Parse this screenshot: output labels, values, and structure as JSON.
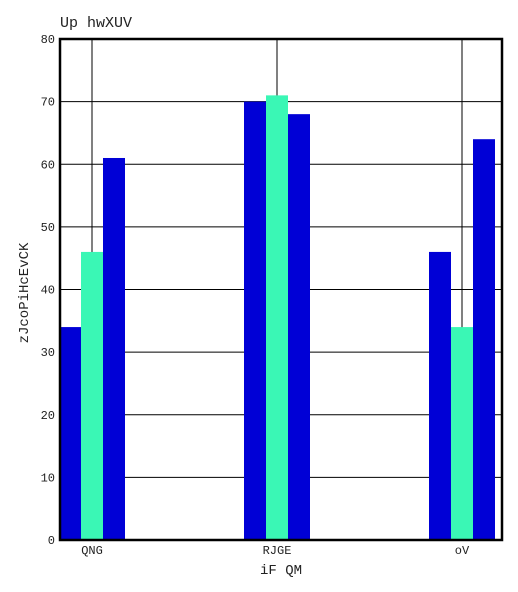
{
  "chart_data": {
    "type": "bar",
    "title": "Up hwXUV",
    "xlabel": "iF QM",
    "ylabel": "zJcoPiHcEvCK",
    "categories": [
      "QNG",
      "RJGE",
      "oV"
    ],
    "series": [
      {
        "values": [
          34,
          70,
          46
        ],
        "color": "#0000d6"
      },
      {
        "values": [
          46,
          71,
          34
        ],
        "color": "#3af7b5"
      },
      {
        "values": [
          61,
          68,
          64
        ],
        "color": "#0000d6"
      }
    ],
    "ylim": [
      0,
      80
    ],
    "yticks": [
      0,
      10,
      20,
      30,
      40,
      50,
      60,
      70,
      80
    ],
    "grid": true,
    "legend": "none"
  }
}
